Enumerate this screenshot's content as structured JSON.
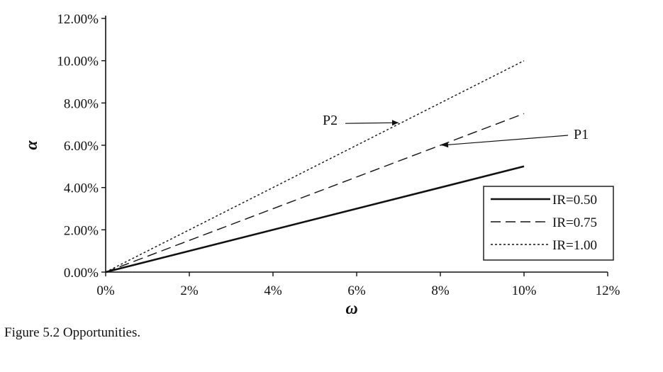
{
  "caption": "Figure 5.2  Opportunities.",
  "chart_data": {
    "type": "line",
    "xlabel": "ω",
    "ylabel": "α",
    "x_ticks": [
      "0%",
      "2%",
      "4%",
      "6%",
      "8%",
      "10%",
      "12%"
    ],
    "y_ticks": [
      "0.00%",
      "2.00%",
      "4.00%",
      "6.00%",
      "8.00%",
      "10.00%",
      "12.00%"
    ],
    "xlim": [
      0,
      12
    ],
    "ylim": [
      0,
      12
    ],
    "unit": "%",
    "grid": false,
    "legend_position": "bottom-right",
    "series": [
      {
        "name": "IR=0.50",
        "style": "solid",
        "x": [
          0,
          10
        ],
        "y": [
          0,
          5.0
        ]
      },
      {
        "name": "IR=0.75",
        "style": "dashed",
        "x": [
          0,
          10
        ],
        "y": [
          0,
          7.5
        ]
      },
      {
        "name": "IR=1.00",
        "style": "dotted",
        "x": [
          0,
          10
        ],
        "y": [
          0,
          10.0
        ]
      }
    ],
    "annotations": [
      {
        "label": "P2",
        "series": "IR=1.00",
        "point_x": 7.0
      },
      {
        "label": "P1",
        "series": "IR=0.75",
        "point_x": 8.0
      }
    ],
    "colors": {
      "line": "#111111",
      "background": "#ffffff"
    }
  }
}
